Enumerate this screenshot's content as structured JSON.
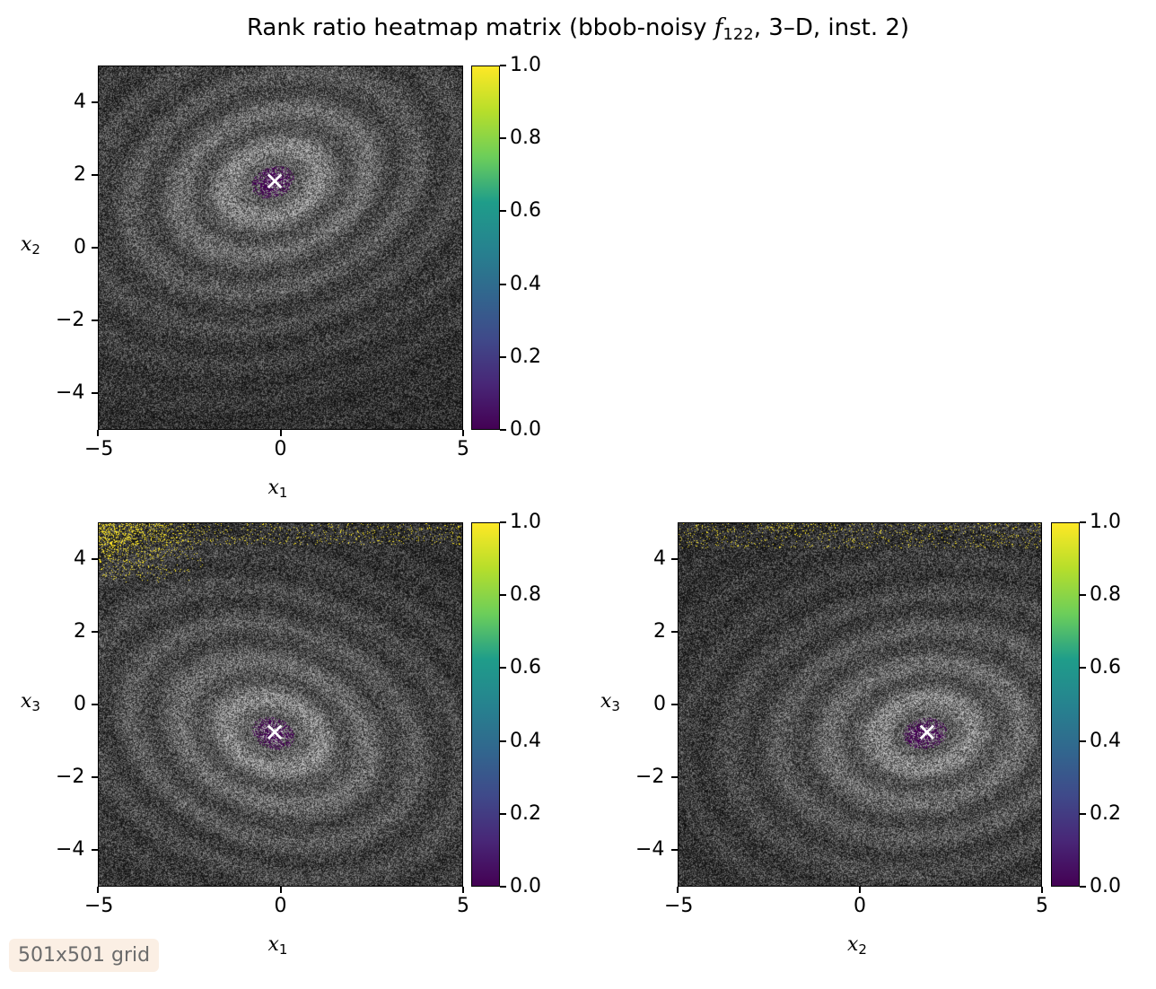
{
  "title_prefix": "Rank ratio heatmap matrix (bbob-noisy ",
  "title_func": "f",
  "title_func_sub": "122",
  "title_suffix": ", 3–D, inst. 2)",
  "badge": "501x501 grid",
  "chart_data": [
    {
      "type": "heatmap",
      "xlabel": "x",
      "xlabel_sub": "1",
      "ylabel": "x",
      "ylabel_sub": "2",
      "xlim": [
        -5,
        5
      ],
      "ylim": [
        -5,
        5
      ],
      "xticks": [
        "−5",
        "0",
        "5"
      ],
      "yticks": [
        "−4",
        "−2",
        "0",
        "2",
        "4"
      ],
      "optimum": [
        -0.2,
        1.8
      ],
      "colorbar": {
        "range": [
          0,
          1
        ],
        "ticks": [
          "0.0",
          "0.2",
          "0.4",
          "0.6",
          "0.8",
          "1.0"
        ]
      }
    },
    {
      "type": "heatmap",
      "xlabel": "x",
      "xlabel_sub": "1",
      "ylabel": "x",
      "ylabel_sub": "3",
      "xlim": [
        -5,
        5
      ],
      "ylim": [
        -5,
        5
      ],
      "xticks": [
        "−5",
        "0",
        "5"
      ],
      "yticks": [
        "−4",
        "−2",
        "0",
        "2",
        "4"
      ],
      "optimum": [
        -0.2,
        -0.8
      ],
      "colorbar": {
        "range": [
          0,
          1
        ],
        "ticks": [
          "0.0",
          "0.2",
          "0.4",
          "0.6",
          "0.8",
          "1.0"
        ]
      }
    },
    {
      "type": "heatmap",
      "xlabel": "x",
      "xlabel_sub": "2",
      "ylabel": "x",
      "ylabel_sub": "3",
      "xlim": [
        -5,
        5
      ],
      "ylim": [
        -5,
        5
      ],
      "xticks": [
        "−5",
        "0",
        "5"
      ],
      "yticks": [
        "−4",
        "−2",
        "0",
        "2",
        "4"
      ],
      "optimum": [
        1.8,
        -0.8
      ],
      "colorbar": {
        "range": [
          0,
          1
        ],
        "ticks": [
          "0.0",
          "0.2",
          "0.4",
          "0.6",
          "0.8",
          "1.0"
        ]
      }
    }
  ]
}
